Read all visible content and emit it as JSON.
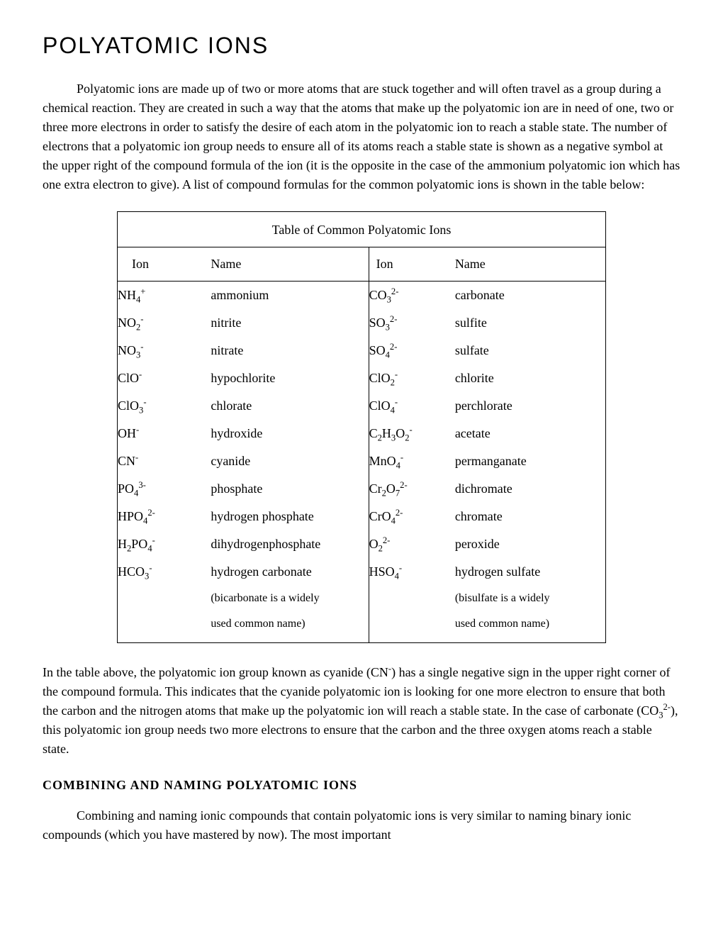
{
  "title": "POLYATOMIC   IONS",
  "intro": "Polyatomic ions are made up of two or more atoms that are stuck together and will often travel as a group during a chemical reaction.  They are created in such a way that the atoms that make up the polyatomic ion are in need of one, two or three more electrons in order to satisfy the desire of each atom in the polyatomic ion to reach a stable state. The number of electrons that a polyatomic ion group needs to ensure all of its atoms reach a stable state is shown as a negative symbol at the upper right of the compound formula of the ion (it is the opposite in the case of the ammonium polyatomic ion which has one extra electron to give).  A list of compound formulas for the common polyatomic ions is shown in the table below:",
  "table": {
    "caption": "Table of Common Polyatomic Ions",
    "headers": {
      "ion": "Ion",
      "name": "Name"
    },
    "rows": [
      {
        "ionL": "NH<sub>4</sub><sup>+</sup>",
        "nameL": "ammonium",
        "ionR": "CO<sub>3</sub><sup>2-</sup>",
        "nameR": "carbonate"
      },
      {
        "ionL": "NO<sub>2</sub><sup>-</sup>",
        "nameL": "nitrite",
        "ionR": "SO<sub>3</sub><sup>2-</sup>",
        "nameR": "sulfite"
      },
      {
        "ionL": "NO<sub>3</sub><sup>-</sup>",
        "nameL": "nitrate",
        "ionR": "SO<sub>4</sub><sup>2-</sup>",
        "nameR": "sulfate"
      },
      {
        "ionL": "ClO<sup>-</sup>",
        "nameL": "hypochlorite",
        "ionR": "ClO<sub>2</sub><sup>-</sup>",
        "nameR": "chlorite"
      },
      {
        "ionL": "ClO<sub>3</sub><sup>-</sup>",
        "nameL": "chlorate",
        "ionR": "ClO<sub>4</sub><sup>-</sup>",
        "nameR": "perchlorate"
      },
      {
        "ionL": "OH<sup>-</sup>",
        "nameL": "hydroxide",
        "ionR": "C<sub>2</sub>H<sub>3</sub>O<sub>2</sub><sup>-</sup>",
        "nameR": "acetate"
      },
      {
        "ionL": "CN<sup>-</sup>",
        "nameL": "cyanide",
        "ionR": "MnO<sub>4</sub><sup>-</sup>",
        "nameR": "permanganate"
      },
      {
        "ionL": "PO<sub>4</sub><sup>3-</sup>",
        "nameL": "phosphate",
        "ionR": "Cr<sub>2</sub>O<sub>7</sub><sup>2-</sup>",
        "nameR": "dichromate"
      },
      {
        "ionL": "HPO<sub>4</sub><sup>2-</sup>",
        "nameL": "hydrogen phosphate",
        "ionR": "CrO<sub>4</sub><sup>2-</sup>",
        "nameR": "chromate"
      },
      {
        "ionL": "H<sub>2</sub>PO<sub>4</sub><sup>-</sup>",
        "nameL": "dihydrogenphosphate",
        "ionR": "O<sub>2</sub><sup>2-</sup>",
        "nameR": "peroxide"
      },
      {
        "ionL": "HCO<sub>3</sub><sup>-</sup>",
        "nameL": "hydrogen carbonate",
        "ionR": "HSO<sub>4</sub><sup>-</sup>",
        "nameR": "hydrogen sulfate"
      }
    ],
    "noteL1": "(bicarbonate is a widely",
    "noteL2": "used common name)",
    "noteR1": "(bisulfate is a widely",
    "noteR2": "used common name)"
  },
  "para2": "In the table above, the polyatomic ion group known as cyanide (CN<sup>-</sup>) has a single negative sign in the upper right corner of the compound formula.  This indicates that the cyanide polyatomic ion is looking for one more electron to ensure that both the carbon and the nitrogen atoms that make up the polyatomic ion will reach a stable state.  In the case of carbonate (CO<sub>3</sub><sup>2-</sup>), this polyatomic ion group needs two more electrons to ensure that the carbon and the three oxygen atoms reach a stable state.",
  "subheading": "COMBINING  AND  NAMING  POLYATOMIC IONS",
  "para3": "Combining and naming ionic compounds that contain polyatomic ions is very similar to naming binary ionic compounds (which you have mastered by now).  The most important"
}
